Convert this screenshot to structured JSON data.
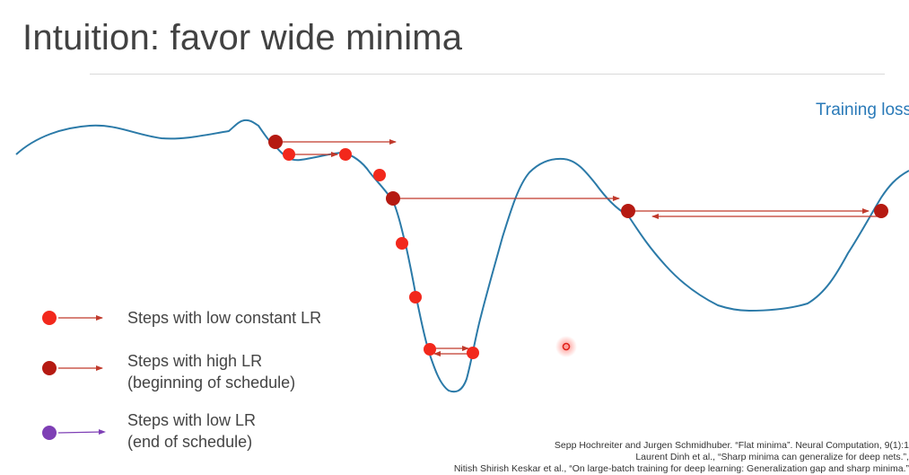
{
  "slide": {
    "title": "Intuition: favor wide minima",
    "curve_label": "Training loss"
  },
  "legend": [
    {
      "line1": "Steps with low constant LR",
      "line2": "",
      "color": "#f2281c"
    },
    {
      "line1": "Steps with high LR",
      "line2": "(beginning of schedule)",
      "color": "#b51a12"
    },
    {
      "line1": "Steps with low LR",
      "line2": "(end of schedule)",
      "color": "#7e3fb5"
    }
  ],
  "colors": {
    "curve": "#2b7aa8",
    "low_lr": "#f2281c",
    "high_lr": "#b51a12",
    "arrow": "#c0392b",
    "end_lr": "#7e3fb5"
  },
  "references": [
    "Sepp Hochreiter and Jurgen Schmidhuber. “Flat minima”. Neural Computation, 9(1):1",
    "Laurent Dinh et al., “Sharp minima can generalize for deep nets.”,",
    "Nitish Shirish Keskar et al., “On large-batch training for deep learning: Generalization gap and sharp minima.”"
  ]
}
